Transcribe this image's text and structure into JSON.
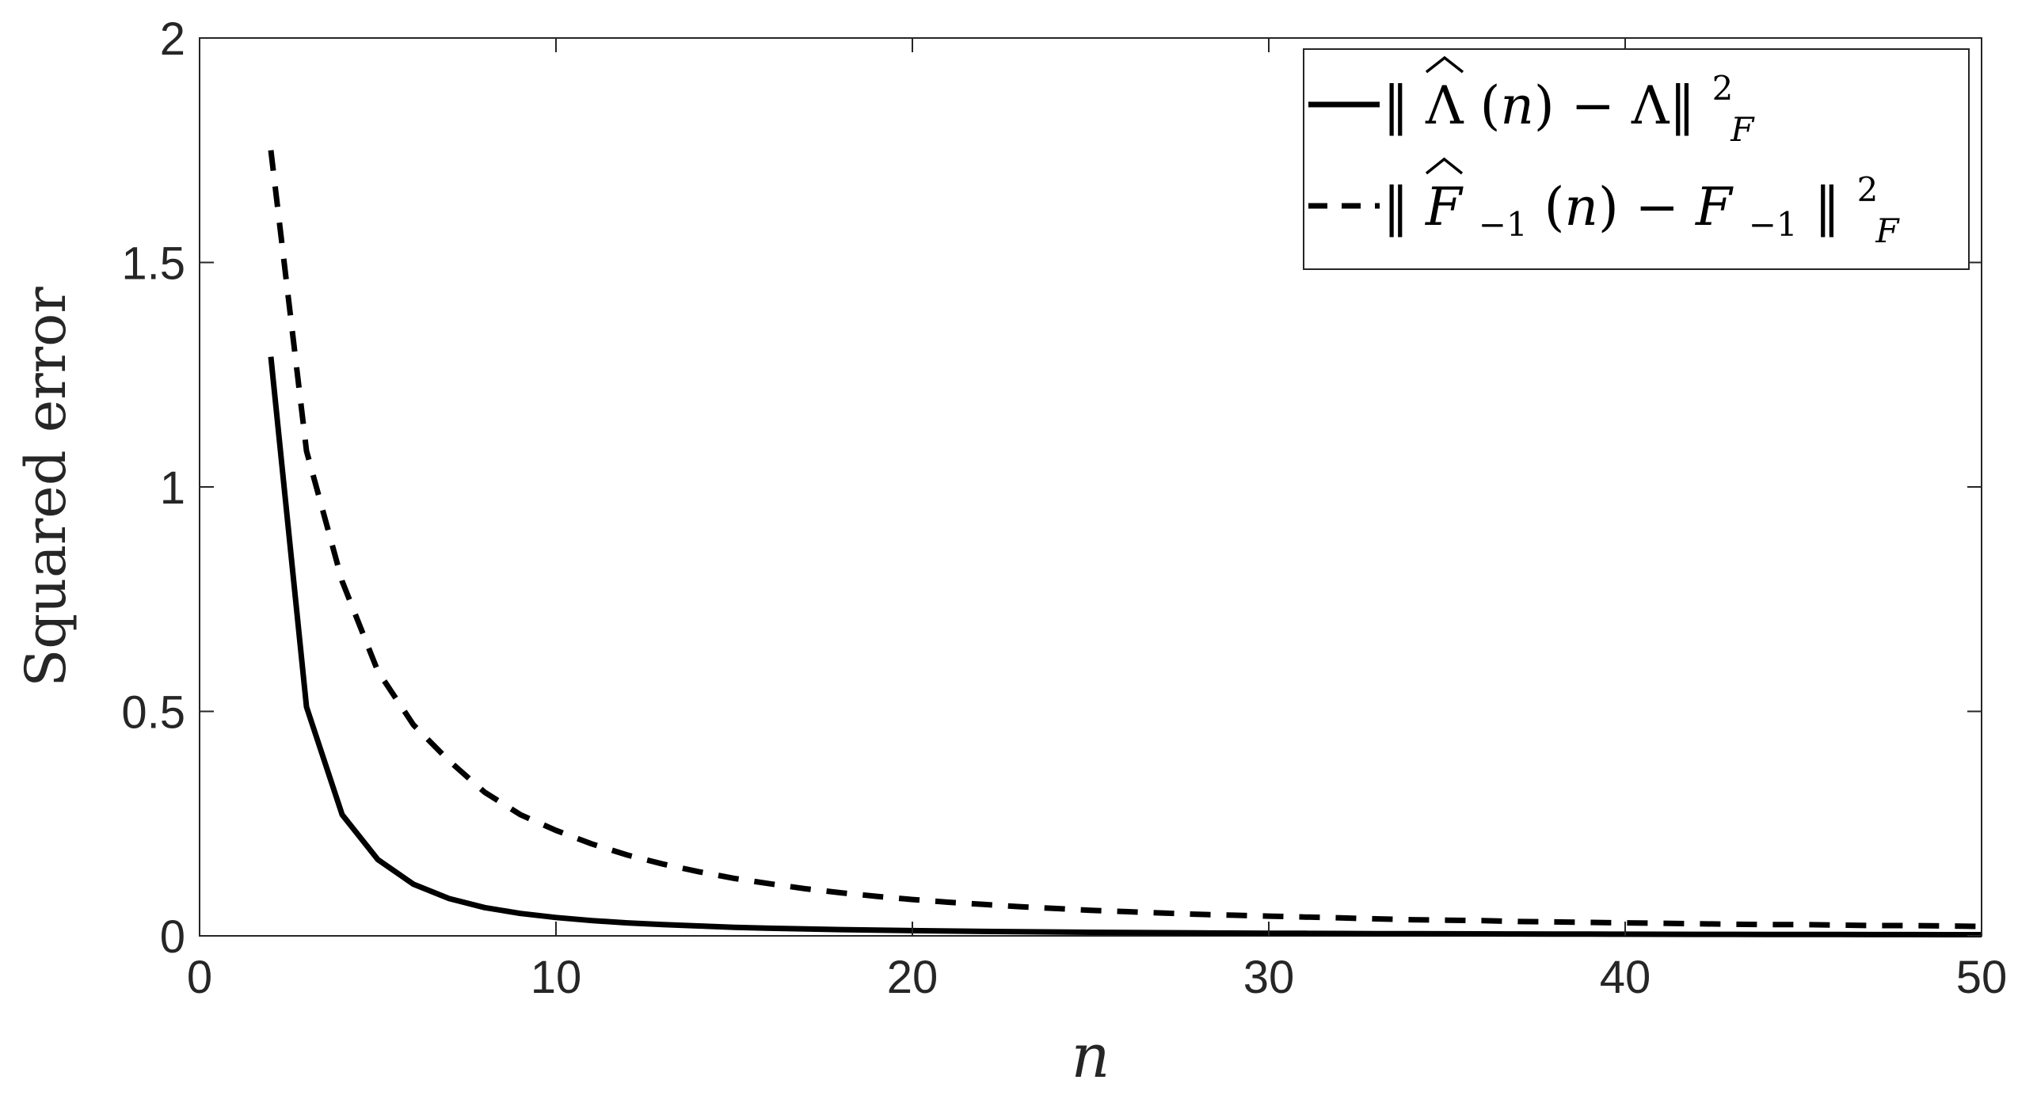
{
  "chart_data": {
    "type": "line",
    "xlabel": "n",
    "ylabel": "Squared error",
    "xlim": [
      0,
      50
    ],
    "ylim": [
      0,
      2
    ],
    "xticks": [
      0,
      10,
      20,
      30,
      40,
      50
    ],
    "yticks": [
      0,
      0.5,
      1,
      1.5,
      2
    ],
    "xtick_labels": [
      "0",
      "10",
      "20",
      "30",
      "40",
      "50"
    ],
    "ytick_labels": [
      "0",
      "0.5",
      "1",
      "1.5",
      "2"
    ],
    "grid": false,
    "box": true,
    "legend_position": "top-right",
    "x": [
      2,
      3,
      4,
      5,
      6,
      7,
      8,
      9,
      10,
      11,
      12,
      13,
      14,
      15,
      16,
      17,
      18,
      19,
      20,
      21,
      22,
      23,
      24,
      25,
      26,
      27,
      28,
      29,
      30,
      31,
      32,
      33,
      34,
      35,
      36,
      37,
      38,
      39,
      40,
      41,
      42,
      43,
      44,
      45,
      46,
      47,
      48,
      49,
      50
    ],
    "series": [
      {
        "name": "‖Λ̂(n) − Λ‖²_F",
        "line_style": "solid",
        "color": "#000000",
        "values": [
          1.29,
          0.51,
          0.27,
          0.17,
          0.115,
          0.083,
          0.063,
          0.05,
          0.041,
          0.034,
          0.029,
          0.025,
          0.022,
          0.019,
          0.017,
          0.0155,
          0.014,
          0.0128,
          0.0117,
          0.0108,
          0.0099,
          0.0092,
          0.0086,
          0.008,
          0.0075,
          0.007,
          0.0066,
          0.0062,
          0.0059,
          0.0056,
          0.0053,
          0.005,
          0.0048,
          0.0046,
          0.0044,
          0.0042,
          0.004,
          0.0038,
          0.0037,
          0.0035,
          0.0034,
          0.0033,
          0.0032,
          0.0031,
          0.003,
          0.0029,
          0.0028,
          0.0027,
          0.0026
        ]
      },
      {
        "name": "‖F̂₋₁(n) − F₋₁‖²_F",
        "line_style": "dashed",
        "color": "#000000",
        "values": [
          1.75,
          1.08,
          0.79,
          0.59,
          0.47,
          0.39,
          0.32,
          0.27,
          0.235,
          0.205,
          0.18,
          0.16,
          0.143,
          0.128,
          0.116,
          0.105,
          0.096,
          0.088,
          0.081,
          0.075,
          0.07,
          0.065,
          0.061,
          0.057,
          0.054,
          0.051,
          0.048,
          0.046,
          0.044,
          0.042,
          0.04,
          0.038,
          0.036,
          0.035,
          0.034,
          0.032,
          0.031,
          0.03,
          0.029,
          0.028,
          0.027,
          0.026,
          0.025,
          0.025,
          0.024,
          0.023,
          0.023,
          0.022,
          0.021
        ]
      }
    ]
  }
}
